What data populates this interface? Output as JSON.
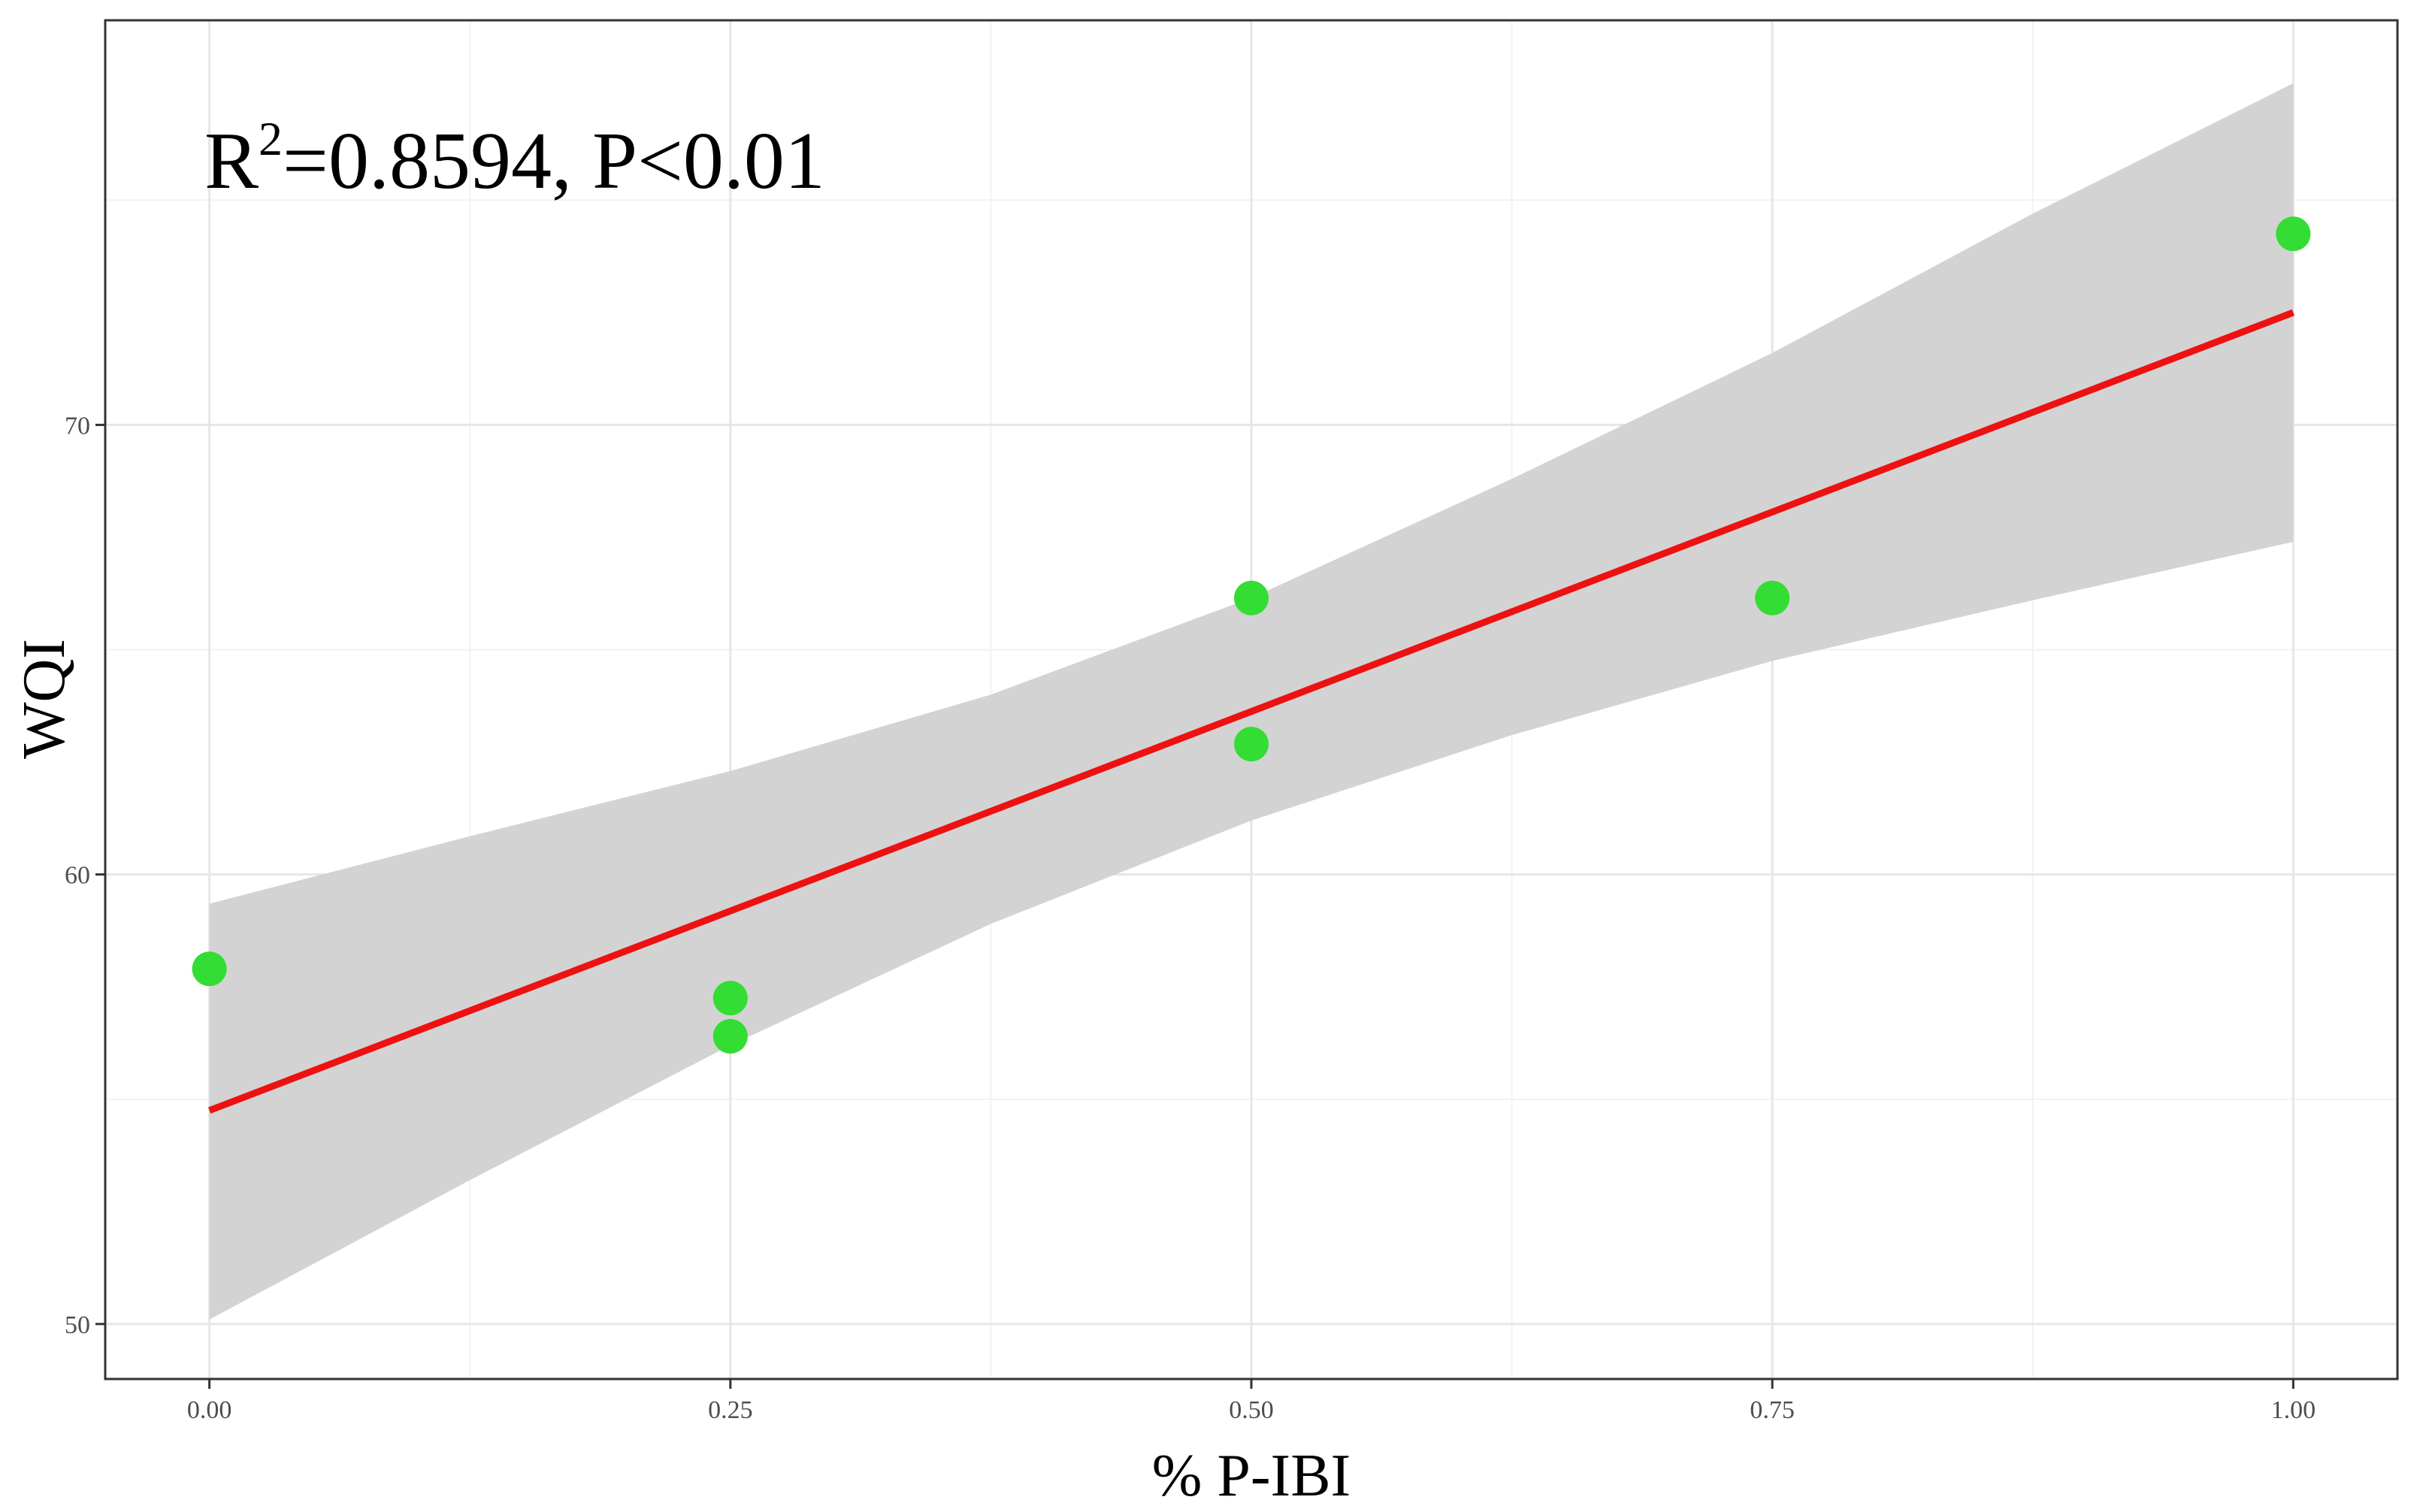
{
  "chart_data": {
    "type": "scatter",
    "title": "",
    "xlabel": "% P-IBI",
    "ylabel": "WQI",
    "annotation": {
      "prefix": "R",
      "superscript": "2",
      "rest": "=0.8594, P<0.01"
    },
    "xlim": [
      -0.05,
      1.05
    ],
    "ylim": [
      48.777,
      79.0
    ],
    "x_ticks": [
      0.0,
      0.25,
      0.5,
      0.75,
      1.0
    ],
    "x_tick_labels": [
      "0.00",
      "0.25",
      "0.50",
      "0.75",
      "1.00"
    ],
    "y_ticks": [
      50,
      60,
      70
    ],
    "y_tick_labels": [
      "50",
      "60",
      "70"
    ],
    "grid": true,
    "legend": "none",
    "points": [
      {
        "x": 0.0,
        "y": 57.9
      },
      {
        "x": 0.25,
        "y": 57.25
      },
      {
        "x": 0.25,
        "y": 56.4
      },
      {
        "x": 0.5,
        "y": 66.15
      },
      {
        "x": 0.5,
        "y": 62.9
      },
      {
        "x": 0.75,
        "y": 66.15
      },
      {
        "x": 1.0,
        "y": 74.25
      }
    ],
    "fit_line": {
      "x": [
        0.0,
        1.0
      ],
      "y": [
        54.75,
        72.5
      ]
    },
    "confidence_band": {
      "x": [
        0.0,
        0.125,
        0.25,
        0.375,
        0.5,
        0.625,
        0.75,
        0.875,
        1.0
      ],
      "upper": [
        59.35,
        60.85,
        62.3,
        64.0,
        66.15,
        68.8,
        71.6,
        74.7,
        77.6
      ],
      "lower": [
        50.1,
        53.2,
        56.2,
        58.9,
        61.2,
        63.1,
        64.75,
        66.1,
        67.4
      ]
    },
    "colors": {
      "points": "#33dd33",
      "fit_line": "#ee1111",
      "band": "#d3d3d3",
      "grid_major": "#e6e6e6",
      "grid_minor": "#f2f2f2",
      "panel_border": "#333333"
    }
  }
}
